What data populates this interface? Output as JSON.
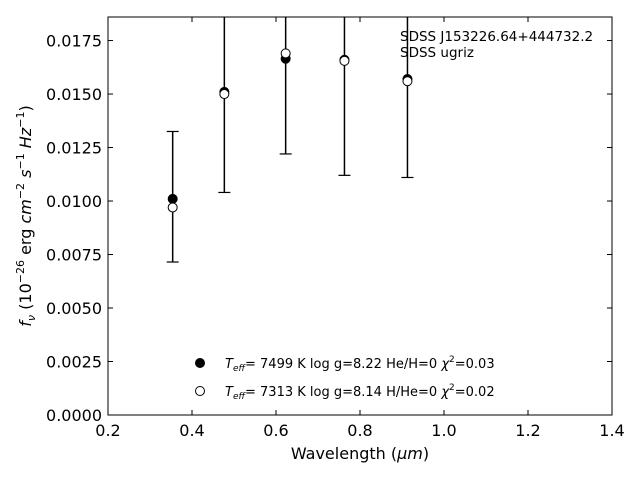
{
  "chart_data": {
    "type": "scatter",
    "xlabel_main": "Wavelength (",
    "xlabel_unit": "μm",
    "xlabel_close": ")",
    "xlim": [
      0.2,
      1.4
    ],
    "ylim": [
      0.0,
      0.0186
    ],
    "xticks": [
      "0.2",
      "0.4",
      "0.6",
      "0.8",
      "1.0",
      "1.2",
      "1.4"
    ],
    "yticks": [
      "0.0000",
      "0.0025",
      "0.0050",
      "0.0075",
      "0.0100",
      "0.0125",
      "0.0150",
      "0.0175"
    ],
    "annotation": [
      "SDSS J153226.64+444732.2",
      "SDSS ugriz"
    ],
    "observed_errorbars": [
      {
        "x": 0.354,
        "lo": 0.00715,
        "hi": 0.01325
      },
      {
        "x": 0.477,
        "lo": 0.0104,
        "hi": 0.0186
      },
      {
        "x": 0.623,
        "lo": 0.0122,
        "hi": 0.0186
      },
      {
        "x": 0.763,
        "lo": 0.0112,
        "hi": 0.0186
      },
      {
        "x": 0.913,
        "lo": 0.0111,
        "hi": 0.0186
      }
    ],
    "series": [
      {
        "name": "Teff= 7499 K log g=8.22 He/H=0 χ2=0.03",
        "marker": "filled",
        "x": [
          0.354,
          0.477,
          0.623,
          0.763,
          0.913
        ],
        "y": [
          0.0101,
          0.0151,
          0.01665,
          0.0166,
          0.0157
        ]
      },
      {
        "name": "Teff= 7313 K log g=8.14 H/He=0 χ2=0.02",
        "marker": "open",
        "x": [
          0.354,
          0.477,
          0.623,
          0.763,
          0.913
        ],
        "y": [
          0.0097,
          0.015,
          0.0169,
          0.01655,
          0.0156
        ]
      }
    ],
    "legend": [
      {
        "teff": "=  7499 K  log g=8.22  He/H=0",
        "chi": "=0.03"
      },
      {
        "teff": "=  7313 K  log g=8.14  H/He=0",
        "chi": "=0.02"
      }
    ]
  }
}
